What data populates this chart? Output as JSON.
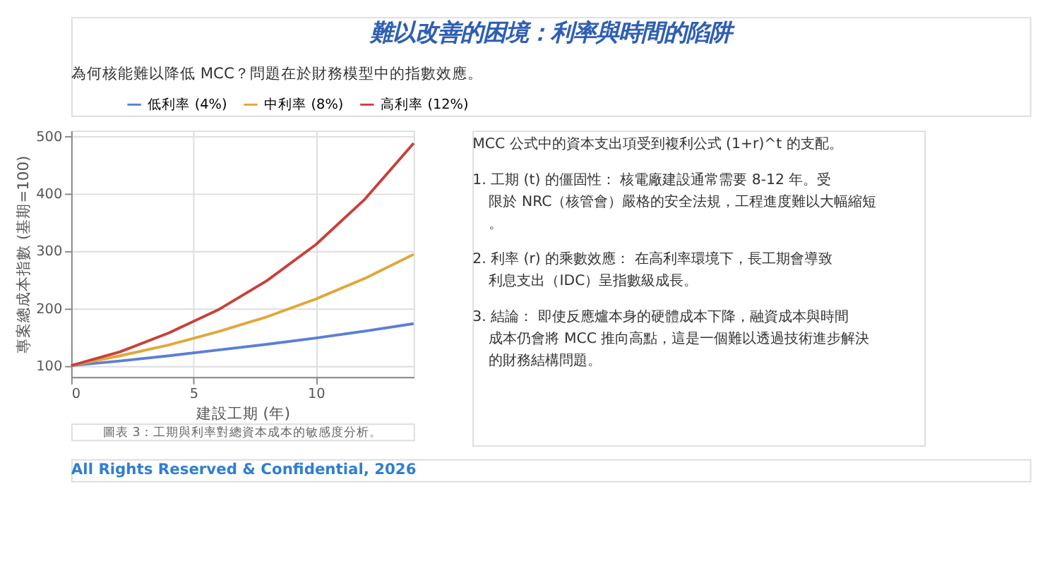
{
  "chart_data": {
    "type": "line",
    "title": "難以改善的困境：利率與時間的陷阱",
    "subtitle": "為何核能難以降低 MCC？問題在於財務模型中的指數效應。",
    "xlabel": "建設工期 (年)",
    "ylabel": "專案總成本指數 (基期=100)",
    "x": [
      0,
      2,
      4,
      6,
      8,
      10,
      12,
      14
    ],
    "series": [
      {
        "name": "低利率 (4%)",
        "color": "#5b7fd6",
        "values": [
          100,
          108,
          117,
          127,
          137,
          148,
          160,
          173
        ]
      },
      {
        "name": "中利率 (8%)",
        "color": "#e0a83a",
        "values": [
          100,
          117,
          136,
          159,
          185,
          216,
          252,
          294
        ]
      },
      {
        "name": "高利率 (12%)",
        "color": "#c9403a",
        "values": [
          100,
          124,
          157,
          197,
          248,
          311,
          390,
          488
        ]
      }
    ],
    "xlim": [
      0,
      14
    ],
    "xticks": [
      0,
      5,
      10
    ],
    "ylim": [
      80,
      510
    ],
    "yticks": [
      100,
      200,
      300,
      400,
      500
    ],
    "grid": true,
    "legend": "top",
    "marker": "none",
    "line_style": "solid",
    "annotations": [
      "MCC 公式中的資本支出項受到複利公式 (1+r)^t 的支配。",
      "1. 工期 (t) 的僵固性： 核電廠建設通常需要 8-12 年。受限於 NRC（核管會）嚴格的安全法規，工程進度難以大幅縮短。",
      "2. 利率 (r) 的乘數效應： 在高利率環境下，長工期會導致利息支出（IDC）呈指數級成長。",
      "3. 結論： 即使反應爐本身的硬體成本下降，融資成本與時間成本仍會將 MCC 推向高點，這是一個難以透過技術進步解決的財務結構問題。",
      "圖表 3：工期與利率對總資本成本的敏感度分析。",
      "All Rights Reserved & Confidential, 2026"
    ]
  }
}
